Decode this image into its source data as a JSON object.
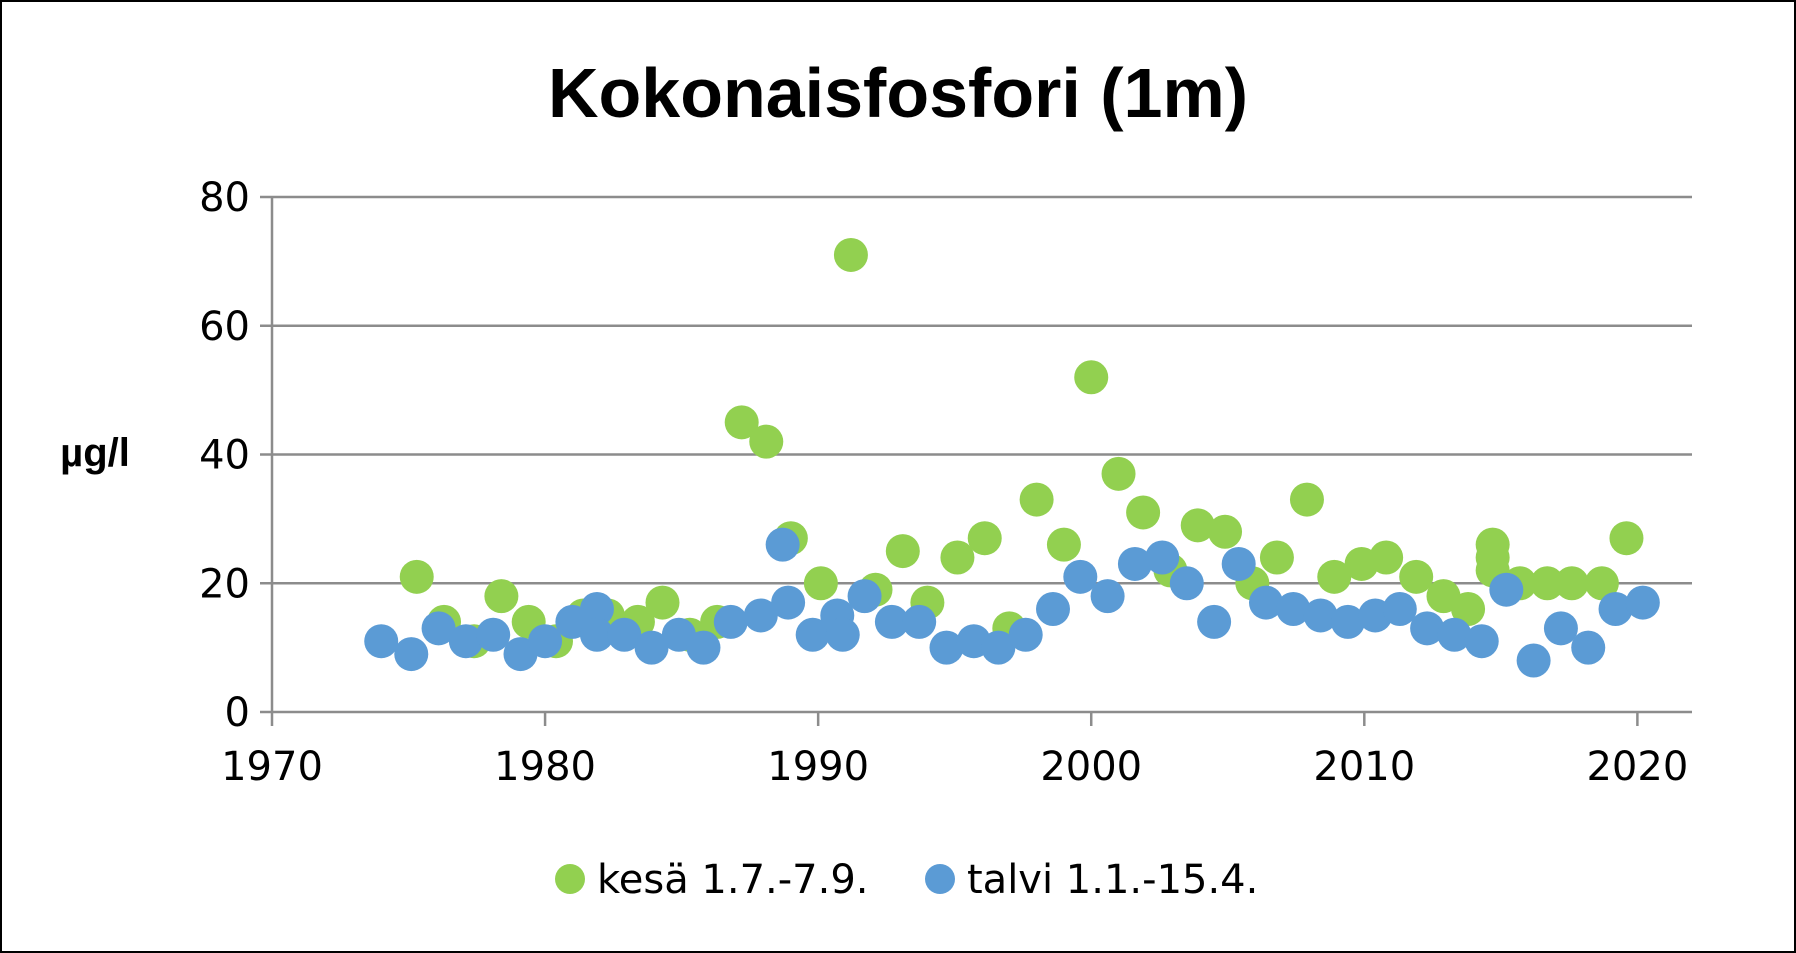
{
  "chart_data": {
    "type": "scatter",
    "title": "Kokonaisfosfori (1m)",
    "xlabel": "",
    "ylabel": "µg/l",
    "xlim": [
      1970,
      2022
    ],
    "ylim": [
      0,
      80
    ],
    "x_ticks": [
      1970,
      1980,
      1990,
      2000,
      2010,
      2020
    ],
    "y_ticks": [
      0,
      20,
      40,
      60,
      80
    ],
    "grid": true,
    "legend_position": "bottom",
    "series": [
      {
        "name": "kesä 1.7.-7.9.",
        "color": "#92d050",
        "points": [
          [
            1975.3,
            21
          ],
          [
            1976.3,
            14
          ],
          [
            1977.4,
            11
          ],
          [
            1978.4,
            18
          ],
          [
            1979.4,
            14
          ],
          [
            1980.4,
            11
          ],
          [
            1981.4,
            15
          ],
          [
            1982.3,
            15
          ],
          [
            1983.4,
            14
          ],
          [
            1984.3,
            17
          ],
          [
            1985.3,
            12
          ],
          [
            1986.3,
            14
          ],
          [
            1987.2,
            45
          ],
          [
            1988.1,
            42
          ],
          [
            1989.0,
            27
          ],
          [
            1990.1,
            20
          ],
          [
            1991.2,
            71
          ],
          [
            1992.1,
            19
          ],
          [
            1993.1,
            25
          ],
          [
            1994.0,
            17
          ],
          [
            1995.1,
            24
          ],
          [
            1996.1,
            27
          ],
          [
            1997.0,
            13
          ],
          [
            1998.0,
            33
          ],
          [
            1999.0,
            26
          ],
          [
            2000.0,
            52
          ],
          [
            2001.0,
            37
          ],
          [
            2001.9,
            31
          ],
          [
            2002.9,
            22
          ],
          [
            2003.9,
            29
          ],
          [
            2004.9,
            28
          ],
          [
            2005.9,
            20
          ],
          [
            2006.8,
            24
          ],
          [
            2007.9,
            33
          ],
          [
            2008.9,
            21
          ],
          [
            2009.9,
            23
          ],
          [
            2010.8,
            24
          ],
          [
            2011.9,
            21
          ],
          [
            2012.9,
            18
          ],
          [
            2013.8,
            16
          ],
          [
            2014.7,
            26
          ],
          [
            2014.7,
            24
          ],
          [
            2014.7,
            22
          ],
          [
            2015.7,
            20
          ],
          [
            2016.7,
            20
          ],
          [
            2017.6,
            20
          ],
          [
            2018.7,
            20
          ],
          [
            2019.6,
            27
          ]
        ]
      },
      {
        "name": "talvi 1.1.-15.4.",
        "color": "#5b9bd5",
        "points": [
          [
            1974.0,
            11
          ],
          [
            1975.1,
            9
          ],
          [
            1976.1,
            13
          ],
          [
            1977.1,
            11
          ],
          [
            1978.1,
            12
          ],
          [
            1979.1,
            9
          ],
          [
            1980.0,
            11
          ],
          [
            1981.0,
            14
          ],
          [
            1981.9,
            16
          ],
          [
            1981.9,
            12
          ],
          [
            1982.9,
            12
          ],
          [
            1983.9,
            10
          ],
          [
            1984.9,
            12
          ],
          [
            1985.8,
            10
          ],
          [
            1986.8,
            14
          ],
          [
            1987.9,
            15
          ],
          [
            1988.7,
            26
          ],
          [
            1988.9,
            17
          ],
          [
            1989.8,
            12
          ],
          [
            1990.7,
            15
          ],
          [
            1990.9,
            12
          ],
          [
            1991.7,
            18
          ],
          [
            1992.7,
            14
          ],
          [
            1993.7,
            14
          ],
          [
            1994.7,
            10
          ],
          [
            1995.7,
            11
          ],
          [
            1996.6,
            10
          ],
          [
            1997.6,
            12
          ],
          [
            1998.6,
            16
          ],
          [
            1999.6,
            21
          ],
          [
            2000.6,
            18
          ],
          [
            2001.6,
            23
          ],
          [
            2002.6,
            24
          ],
          [
            2003.5,
            20
          ],
          [
            2004.5,
            14
          ],
          [
            2005.4,
            23
          ],
          [
            2006.4,
            17
          ],
          [
            2007.4,
            16
          ],
          [
            2008.4,
            15
          ],
          [
            2009.4,
            14
          ],
          [
            2010.4,
            15
          ],
          [
            2011.3,
            16
          ],
          [
            2012.3,
            13
          ],
          [
            2013.3,
            12
          ],
          [
            2014.3,
            11
          ],
          [
            2015.2,
            19
          ],
          [
            2016.2,
            8
          ],
          [
            2017.2,
            13
          ],
          [
            2018.2,
            10
          ],
          [
            2019.2,
            16
          ],
          [
            2020.2,
            17
          ]
        ]
      }
    ]
  }
}
